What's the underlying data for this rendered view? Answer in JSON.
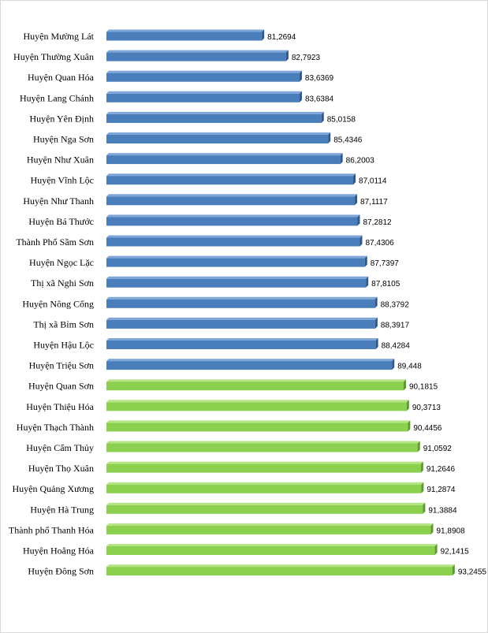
{
  "chart_data": {
    "type": "bar",
    "orientation": "horizontal",
    "title": "",
    "xlabel": "",
    "ylabel": "",
    "xlim": [
      71.5,
      93.6
    ],
    "grid": false,
    "legend": "none",
    "colors": {
      "blue": "#4a7ebb",
      "blue_top": "#7fa6d8",
      "blue_side": "#30588a",
      "green": "#8cd04f",
      "green_top": "#b5e484",
      "green_side": "#5e9a2c"
    },
    "categories": [
      "Huyện Mường Lát",
      "Huyện Thường Xuân",
      "Huyện Quan Hóa",
      "Huyện Lang  Chánh",
      "Huyện Yên  Định",
      "Huyện Nga Sơn",
      "Huyện Như Xuân",
      "Huyện Vĩnh Lộc",
      "Huyện Như Thanh",
      "Huyện Bá Thước",
      "Thành Phố Sầm  Sơn",
      "Huyện Ngọc Lặc",
      "Thị xã  Nghi Sơn",
      "Huyện Nông Cống",
      "Thị xã  Bỉm Sơn",
      "Huyện Hậu Lộc",
      "Huyện Triệu Sơn",
      "Huyện Quan Sơn",
      "Huyện Thiệu Hóa",
      "Huyện Thạch Thành",
      "Huyện Cẩm  Thủy",
      "Huyện Thọ Xuân",
      "Huyện Quảng  Xương",
      "Huyện Hà Trung",
      "Thành phố Thanh Hóa",
      "Huyện Hoằng Hóa",
      "Huyện Đông Sơn"
    ],
    "values": [
      81.2694,
      82.7923,
      83.6369,
      83.6384,
      85.0158,
      85.4346,
      86.2003,
      87.0114,
      87.1117,
      87.2812,
      87.4306,
      87.7397,
      87.8105,
      88.3792,
      88.3917,
      88.4284,
      89.448,
      90.1815,
      90.3713,
      90.4456,
      91.0592,
      91.2646,
      91.2874,
      91.3884,
      91.8908,
      92.1415,
      93.2455
    ],
    "value_labels": [
      "81,2694",
      "82,7923",
      "83,6369",
      "83,6384",
      "85,0158",
      "85,4346",
      "86,2003",
      "87,0114",
      "87,1117",
      "87,2812",
      "87,4306",
      "87,7397",
      "87,8105",
      "88,3792",
      "88,3917",
      "88,4284",
      "89,448",
      "90,1815",
      "90,3713",
      "90,4456",
      "91,0592",
      "91,2646",
      "91,2874",
      "91,3884",
      "91,8908",
      "92,1415",
      "93,2455"
    ],
    "bar_colors": [
      "blue",
      "blue",
      "blue",
      "blue",
      "blue",
      "blue",
      "blue",
      "blue",
      "blue",
      "blue",
      "blue",
      "blue",
      "blue",
      "blue",
      "blue",
      "blue",
      "blue",
      "green",
      "green",
      "green",
      "green",
      "green",
      "green",
      "green",
      "green",
      "green",
      "green"
    ]
  }
}
